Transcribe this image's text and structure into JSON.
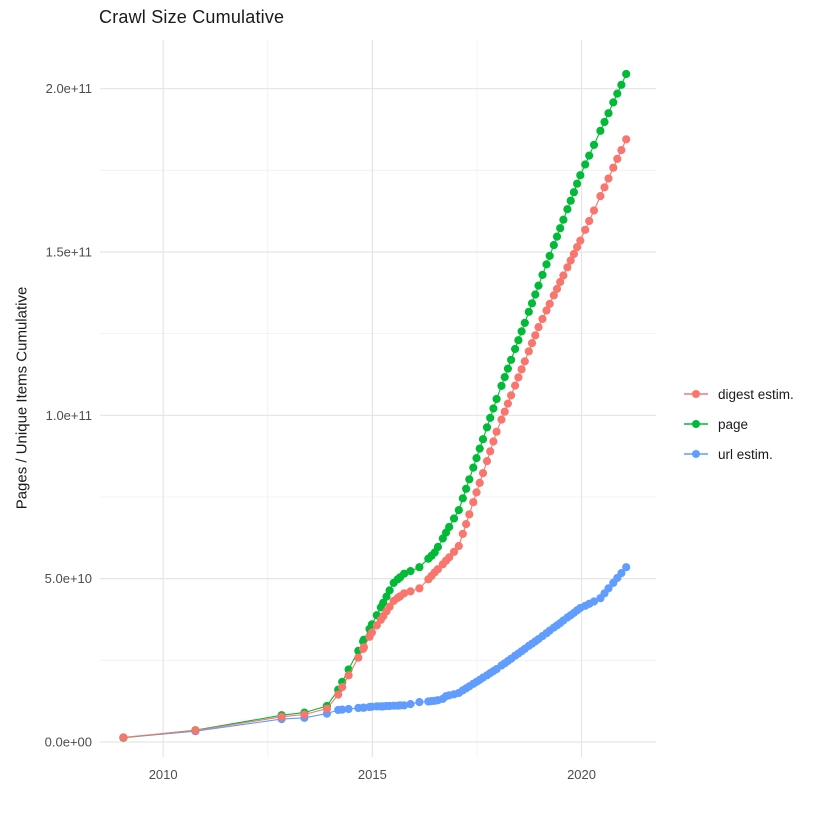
{
  "title": "Crawl Size Cumulative",
  "y_axis": {
    "label": "Pages / Unique Items Cumulative",
    "tick_labels": [
      "0.0e+00",
      "5.0e+10",
      "1.0e+11",
      "1.5e+11",
      "2.0e+11"
    ],
    "tick_values_e9": [
      0,
      50,
      100,
      150,
      200
    ],
    "minor_tick_values_e9": [
      25,
      75,
      125,
      175
    ]
  },
  "x_axis": {
    "label": "",
    "tick_labels": [
      "2010",
      "2015",
      "2020"
    ],
    "tick_values": [
      2010,
      2015,
      2020
    ],
    "minor_tick_values": [
      2012.5,
      2017.5
    ]
  },
  "legend": {
    "position": "right",
    "items": [
      {
        "label": "digest estim.",
        "color": "#F8766D"
      },
      {
        "label": "page",
        "color": "#00BA38"
      },
      {
        "label": "url estim.",
        "color": "#619CFF"
      }
    ]
  },
  "style": {
    "background": "#FFFFFF",
    "major_grid_color": "#E5E5E5",
    "minor_grid_color": "#EFEFEF",
    "tick_text_color": "#4D4D4D",
    "point_radius": 4.1
  },
  "chart_data": {
    "type": "line",
    "title": "Crawl Size Cumulative",
    "xlabel": "",
    "ylabel": "Pages / Unique Items Cumulative",
    "value_unit": "items, stored as billions (1e9)",
    "x_range": [
      2008.49,
      2021.78
    ],
    "y_range_e9": [
      -4.6,
      214.9
    ],
    "grid": true,
    "legend_position": "right",
    "series": [
      {
        "name": "digest estim.",
        "color": "#F8766D",
        "points": [
          [
            2009.05,
            1.4
          ],
          [
            2010.77,
            3.5
          ],
          [
            2012.83,
            7.7
          ],
          [
            2013.375,
            8.4
          ],
          [
            2013.913,
            10.2
          ],
          [
            2014.183,
            14.5
          ],
          [
            2014.279,
            16.8
          ],
          [
            2014.433,
            20.4
          ],
          [
            2014.663,
            25.8
          ],
          [
            2014.779,
            28.5
          ],
          [
            2014.798,
            29.0
          ],
          [
            2014.933,
            32.2
          ],
          [
            2014.99,
            33.5
          ],
          [
            2015.106,
            35.7
          ],
          [
            2015.202,
            37.4
          ],
          [
            2015.26,
            38.5
          ],
          [
            2015.337,
            40.0
          ],
          [
            2015.413,
            41.4
          ],
          [
            2015.51,
            43.2
          ],
          [
            2015.606,
            44.1
          ],
          [
            2015.663,
            44.6
          ],
          [
            2015.76,
            45.5
          ],
          [
            2015.913,
            46.1
          ],
          [
            2016.125,
            47.0
          ],
          [
            2016.337,
            49.8
          ],
          [
            2016.413,
            50.8
          ],
          [
            2016.49,
            51.9
          ],
          [
            2016.567,
            52.9
          ],
          [
            2016.683,
            54.4
          ],
          [
            2016.76,
            55.5
          ],
          [
            2016.837,
            56.5
          ],
          [
            2016.952,
            58.2
          ],
          [
            2017.067,
            60.0
          ],
          [
            2017.163,
            63.7
          ],
          [
            2017.24,
            66.7
          ],
          [
            2017.317,
            69.7
          ],
          [
            2017.413,
            73.4
          ],
          [
            2017.49,
            76.4
          ],
          [
            2017.567,
            79.3
          ],
          [
            2017.644,
            82.3
          ],
          [
            2017.74,
            86.0
          ],
          [
            2017.817,
            89.0
          ],
          [
            2017.894,
            92.0
          ],
          [
            2017.971,
            95.0
          ],
          [
            2018.087,
            98.7
          ],
          [
            2018.163,
            101.1
          ],
          [
            2018.24,
            103.6
          ],
          [
            2018.317,
            106.1
          ],
          [
            2018.413,
            109.1
          ],
          [
            2018.49,
            111.6
          ],
          [
            2018.567,
            114.1
          ],
          [
            2018.644,
            116.5
          ],
          [
            2018.74,
            119.6
          ],
          [
            2018.817,
            122.1
          ],
          [
            2018.894,
            124.5
          ],
          [
            2018.971,
            127.0
          ],
          [
            2019.067,
            129.5
          ],
          [
            2019.163,
            132.1
          ],
          [
            2019.24,
            134.1
          ],
          [
            2019.337,
            136.7
          ],
          [
            2019.413,
            138.7
          ],
          [
            2019.49,
            140.8
          ],
          [
            2019.567,
            142.8
          ],
          [
            2019.663,
            145.3
          ],
          [
            2019.74,
            147.4
          ],
          [
            2019.817,
            149.4
          ],
          [
            2019.894,
            151.5
          ],
          [
            2019.971,
            153.5
          ],
          [
            2020.087,
            156.8
          ],
          [
            2020.183,
            159.5
          ],
          [
            2020.298,
            162.7
          ],
          [
            2020.452,
            167.1
          ],
          [
            2020.548,
            169.8
          ],
          [
            2020.644,
            172.5
          ],
          [
            2020.76,
            175.8
          ],
          [
            2020.856,
            178.5
          ],
          [
            2020.952,
            181.2
          ],
          [
            2021.067,
            184.5
          ]
        ]
      },
      {
        "name": "page",
        "color": "#00BA38",
        "points": [
          [
            2009.05,
            1.3
          ],
          [
            2010.77,
            3.6
          ],
          [
            2012.83,
            8.2
          ],
          [
            2013.375,
            9.0
          ],
          [
            2013.913,
            11.0
          ],
          [
            2014.183,
            16.0
          ],
          [
            2014.279,
            18.4
          ],
          [
            2014.433,
            22.2
          ],
          [
            2014.663,
            27.9
          ],
          [
            2014.779,
            30.8
          ],
          [
            2014.798,
            31.3
          ],
          [
            2014.933,
            34.6
          ],
          [
            2014.99,
            36.0
          ],
          [
            2015.106,
            38.8
          ],
          [
            2015.202,
            41.2
          ],
          [
            2015.26,
            42.6
          ],
          [
            2015.337,
            44.5
          ],
          [
            2015.413,
            46.4
          ],
          [
            2015.51,
            48.7
          ],
          [
            2015.606,
            49.8
          ],
          [
            2015.663,
            50.4
          ],
          [
            2015.76,
            51.5
          ],
          [
            2015.913,
            52.3
          ],
          [
            2016.125,
            53.5
          ],
          [
            2016.337,
            56.1
          ],
          [
            2016.413,
            57.0
          ],
          [
            2016.49,
            58.0
          ],
          [
            2016.567,
            59.7
          ],
          [
            2016.683,
            62.3
          ],
          [
            2016.76,
            64.1
          ],
          [
            2016.837,
            65.8
          ],
          [
            2016.952,
            68.4
          ],
          [
            2017.067,
            71.0
          ],
          [
            2017.163,
            74.6
          ],
          [
            2017.24,
            77.5
          ],
          [
            2017.317,
            80.4
          ],
          [
            2017.413,
            84.0
          ],
          [
            2017.49,
            86.9
          ],
          [
            2017.567,
            89.8
          ],
          [
            2017.644,
            92.7
          ],
          [
            2017.74,
            96.3
          ],
          [
            2017.817,
            99.2
          ],
          [
            2017.894,
            102.1
          ],
          [
            2017.971,
            105.0
          ],
          [
            2018.087,
            109.0
          ],
          [
            2018.163,
            111.7
          ],
          [
            2018.24,
            114.3
          ],
          [
            2018.317,
            117.0
          ],
          [
            2018.413,
            120.3
          ],
          [
            2018.49,
            123.0
          ],
          [
            2018.567,
            125.7
          ],
          [
            2018.644,
            128.3
          ],
          [
            2018.74,
            131.7
          ],
          [
            2018.817,
            134.3
          ],
          [
            2018.894,
            137.0
          ],
          [
            2018.971,
            139.7
          ],
          [
            2019.067,
            143.0
          ],
          [
            2019.163,
            146.2
          ],
          [
            2019.24,
            148.8
          ],
          [
            2019.337,
            152.1
          ],
          [
            2019.413,
            154.7
          ],
          [
            2019.49,
            157.3
          ],
          [
            2019.567,
            159.9
          ],
          [
            2019.663,
            163.1
          ],
          [
            2019.74,
            165.7
          ],
          [
            2019.817,
            168.3
          ],
          [
            2019.894,
            170.9
          ],
          [
            2019.971,
            173.5
          ],
          [
            2020.087,
            176.8
          ],
          [
            2020.183,
            179.5
          ],
          [
            2020.298,
            182.8
          ],
          [
            2020.452,
            187.1
          ],
          [
            2020.548,
            189.8
          ],
          [
            2020.644,
            192.5
          ],
          [
            2020.76,
            195.8
          ],
          [
            2020.856,
            198.5
          ],
          [
            2020.952,
            201.2
          ],
          [
            2021.067,
            204.5
          ]
        ]
      },
      {
        "name": "url estim.",
        "color": "#619CFF",
        "points": [
          [
            2009.05,
            1.3
          ],
          [
            2010.77,
            3.3
          ],
          [
            2012.83,
            7.0
          ],
          [
            2013.375,
            7.4
          ],
          [
            2013.913,
            8.7
          ],
          [
            2014.183,
            9.8
          ],
          [
            2014.279,
            9.9
          ],
          [
            2014.433,
            10.1
          ],
          [
            2014.663,
            10.4
          ],
          [
            2014.779,
            10.5
          ],
          [
            2014.798,
            10.5
          ],
          [
            2014.933,
            10.7
          ],
          [
            2014.99,
            10.8
          ],
          [
            2015.106,
            10.9
          ],
          [
            2015.202,
            10.9
          ],
          [
            2015.26,
            10.9
          ],
          [
            2015.337,
            11.0
          ],
          [
            2015.413,
            11.0
          ],
          [
            2015.51,
            11.1
          ],
          [
            2015.606,
            11.1
          ],
          [
            2015.663,
            11.2
          ],
          [
            2015.76,
            11.2
          ],
          [
            2015.913,
            11.6
          ],
          [
            2016.125,
            12.2
          ],
          [
            2016.337,
            12.4
          ],
          [
            2016.413,
            12.5
          ],
          [
            2016.49,
            12.6
          ],
          [
            2016.567,
            12.8
          ],
          [
            2016.683,
            13.2
          ],
          [
            2016.76,
            14.0
          ],
          [
            2016.837,
            14.3
          ],
          [
            2016.952,
            14.6
          ],
          [
            2017.067,
            15.0
          ],
          [
            2017.163,
            15.8
          ],
          [
            2017.24,
            16.4
          ],
          [
            2017.317,
            17.0
          ],
          [
            2017.413,
            17.8
          ],
          [
            2017.49,
            18.4
          ],
          [
            2017.567,
            19.0
          ],
          [
            2017.644,
            19.7
          ],
          [
            2017.74,
            20.4
          ],
          [
            2017.817,
            21.1
          ],
          [
            2017.894,
            21.7
          ],
          [
            2017.971,
            22.3
          ],
          [
            2018.087,
            23.4
          ],
          [
            2018.163,
            24.1
          ],
          [
            2018.24,
            24.8
          ],
          [
            2018.317,
            25.5
          ],
          [
            2018.413,
            26.4
          ],
          [
            2018.49,
            27.1
          ],
          [
            2018.567,
            27.8
          ],
          [
            2018.644,
            28.5
          ],
          [
            2018.74,
            29.4
          ],
          [
            2018.817,
            30.1
          ],
          [
            2018.894,
            30.8
          ],
          [
            2018.971,
            31.5
          ],
          [
            2019.067,
            32.4
          ],
          [
            2019.163,
            33.3
          ],
          [
            2019.24,
            34.1
          ],
          [
            2019.337,
            35.0
          ],
          [
            2019.413,
            35.7
          ],
          [
            2019.49,
            36.4
          ],
          [
            2019.567,
            37.2
          ],
          [
            2019.663,
            38.1
          ],
          [
            2019.74,
            38.8
          ],
          [
            2019.817,
            39.5
          ],
          [
            2019.894,
            40.3
          ],
          [
            2019.971,
            41.0
          ],
          [
            2020.087,
            41.7
          ],
          [
            2020.183,
            42.3
          ],
          [
            2020.298,
            43.0
          ],
          [
            2020.452,
            44.0
          ],
          [
            2020.548,
            45.5
          ],
          [
            2020.644,
            47.0
          ],
          [
            2020.76,
            48.7
          ],
          [
            2020.856,
            50.2
          ],
          [
            2020.952,
            51.7
          ],
          [
            2021.067,
            53.5
          ]
        ]
      }
    ]
  }
}
